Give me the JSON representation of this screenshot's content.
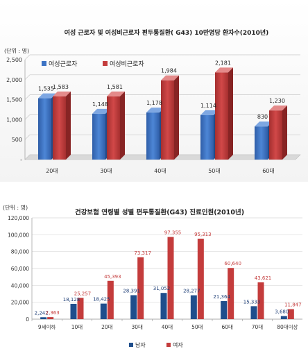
{
  "chart_data": [
    {
      "type": "bar",
      "title": "여성 근로자 및 여성비근로자 편두통질환( G43) 10만명당 환자수(2010년)",
      "unit_label": "(단위 : 명)",
      "categories": [
        "20대",
        "30대",
        "40대",
        "50대",
        "60대"
      ],
      "series": [
        {
          "name": "여성근로자",
          "values": [
            1535,
            1148,
            1178,
            1114,
            830
          ],
          "labels": [
            "1,535",
            "1,148",
            "1,178",
            "1,114",
            "830"
          ]
        },
        {
          "name": "여성비근로자",
          "values": [
            1583,
            1581,
            1984,
            2181,
            1230
          ],
          "labels": [
            "1,583",
            "1,581",
            "1,984",
            "2,181",
            "1,230"
          ]
        }
      ],
      "ylim": [
        0,
        2500
      ],
      "yticks": [
        "-",
        "500",
        "1,000",
        "1,500",
        "2,000",
        "2,500"
      ],
      "grid": true,
      "legend": "top-left",
      "colors": [
        "#3c73c4",
        "#c43c3c"
      ]
    },
    {
      "type": "bar",
      "title": "건강보험 연령별 성별 편두통질환(G43) 진료인원(2010년)",
      "unit_label": "(단위 : 명)",
      "categories": [
        "9세이하",
        "10대",
        "20대",
        "30대",
        "40대",
        "50대",
        "60대",
        "70대",
        "80대이상"
      ],
      "series": [
        {
          "name": "남자",
          "values": [
            2242,
            18128,
            18425,
            28391,
            31052,
            28277,
            21364,
            15333,
            3680
          ],
          "labels": [
            "2,242",
            "18,128",
            "18,425",
            "28,391",
            "31,052",
            "28,277",
            "21,364",
            "15,333",
            "3,680"
          ]
        },
        {
          "name": "여자",
          "values": [
            2363,
            25257,
            45393,
            73317,
            97355,
            95313,
            60640,
            43621,
            11847
          ],
          "labels": [
            "2,363",
            "25,257",
            "45,393",
            "73,317",
            "97,355",
            "95,313",
            "60,640",
            "43,621",
            "11,847"
          ]
        }
      ],
      "ylim": [
        0,
        120000
      ],
      "yticks": [
        "0",
        "20,000",
        "40,000",
        "60,000",
        "80,000",
        "100,000",
        "120,000"
      ],
      "grid": true,
      "legend": "bottom",
      "colors": [
        "#1f4e8c",
        "#c43c3c"
      ]
    }
  ]
}
